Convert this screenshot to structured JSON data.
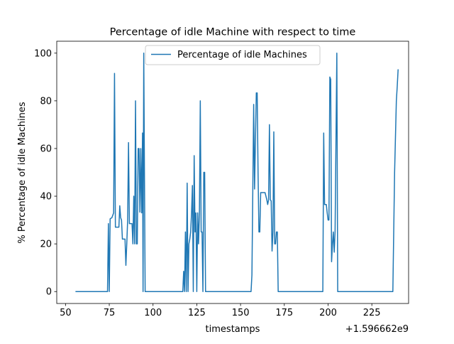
{
  "chart_data": {
    "type": "line",
    "title": "Percentage of idle Machine with respect to time",
    "xlabel": "timestamps",
    "ylabel": "% Percentage of idle Machines",
    "x_offset_label": "+1.596662e9",
    "xlim": [
      45,
      246
    ],
    "ylim": [
      -5,
      105
    ],
    "x_ticks": [
      50,
      75,
      100,
      125,
      150,
      175,
      200,
      225
    ],
    "y_ticks": [
      0,
      20,
      40,
      60,
      80,
      100
    ],
    "legend_position": "upper center",
    "grid": false,
    "series": [
      {
        "name": "Percentage of idle Machines",
        "color": "#1f77b4",
        "points": [
          [
            56,
            0
          ],
          [
            74,
            0
          ],
          [
            74.5,
            28.5
          ],
          [
            75,
            0
          ],
          [
            75.5,
            30.5
          ],
          [
            76.5,
            31
          ],
          [
            77.5,
            33
          ],
          [
            78,
            91.5
          ],
          [
            78.5,
            27
          ],
          [
            80.5,
            27
          ],
          [
            81,
            36
          ],
          [
            81.5,
            31
          ],
          [
            82,
            30
          ],
          [
            82.5,
            22
          ],
          [
            83.5,
            22
          ],
          [
            84,
            22
          ],
          [
            84.5,
            11
          ],
          [
            85,
            20
          ],
          [
            85.5,
            30
          ],
          [
            86,
            62.5
          ],
          [
            86.5,
            28.5
          ],
          [
            88,
            28.5
          ],
          [
            88.5,
            20
          ],
          [
            89,
            40
          ],
          [
            89.5,
            20
          ],
          [
            90,
            80
          ],
          [
            90.5,
            20
          ],
          [
            91,
            20
          ],
          [
            91.5,
            60
          ],
          [
            92,
            60
          ],
          [
            92.5,
            33.3
          ],
          [
            93,
            60
          ],
          [
            93.5,
            33
          ],
          [
            94,
            66.5
          ],
          [
            94.3,
            0
          ],
          [
            94.7,
            100
          ],
          [
            95.5,
            0
          ],
          [
            117,
            0
          ],
          [
            117.5,
            8.5
          ],
          [
            118,
            0
          ],
          [
            118.5,
            25
          ],
          [
            119,
            0
          ],
          [
            119.5,
            45.5
          ],
          [
            120,
            0
          ],
          [
            120.5,
            20
          ],
          [
            121,
            22
          ],
          [
            121.5,
            25
          ],
          [
            122,
            33
          ],
          [
            122.5,
            44.5
          ],
          [
            123,
            0
          ],
          [
            123.5,
            57
          ],
          [
            124,
            25
          ],
          [
            124.5,
            33
          ],
          [
            125,
            0
          ],
          [
            125.5,
            33
          ],
          [
            126,
            20
          ],
          [
            126.5,
            33
          ],
          [
            127,
            80
          ],
          [
            127.5,
            25
          ],
          [
            128,
            25
          ],
          [
            128.5,
            0
          ],
          [
            129,
            50
          ],
          [
            129.5,
            50
          ],
          [
            130,
            0
          ],
          [
            156,
            0
          ],
          [
            156.5,
            7
          ],
          [
            157.5,
            78.5
          ],
          [
            158,
            43
          ],
          [
            159,
            83.3
          ],
          [
            159.5,
            83.3
          ],
          [
            160,
            50
          ],
          [
            160.5,
            25
          ],
          [
            161,
            25
          ],
          [
            161.5,
            41.5
          ],
          [
            164,
            41.5
          ],
          [
            165,
            38.5
          ],
          [
            165.5,
            36.5
          ],
          [
            166,
            38.5
          ],
          [
            166.5,
            70
          ],
          [
            167,
            38.5
          ],
          [
            167.5,
            38
          ],
          [
            168,
            17
          ],
          [
            168.5,
            25
          ],
          [
            169,
            67
          ],
          [
            169.5,
            20
          ],
          [
            170,
            20
          ],
          [
            170.5,
            25
          ],
          [
            171,
            25
          ],
          [
            171.5,
            0
          ],
          [
            197,
            0
          ],
          [
            197.5,
            66.5
          ],
          [
            198,
            36.5
          ],
          [
            199,
            36.5
          ],
          [
            199.5,
            33
          ],
          [
            200,
            30
          ],
          [
            200.5,
            30
          ],
          [
            201,
            90
          ],
          [
            201.5,
            89
          ],
          [
            202,
            12.5
          ],
          [
            202.5,
            20
          ],
          [
            203,
            25
          ],
          [
            203.5,
            16.5
          ],
          [
            204,
            25
          ],
          [
            205,
            100
          ],
          [
            205.5,
            0
          ],
          [
            237,
            0
          ],
          [
            238,
            50
          ],
          [
            239,
            80
          ],
          [
            239.5,
            86
          ],
          [
            240,
            93
          ]
        ]
      }
    ]
  }
}
